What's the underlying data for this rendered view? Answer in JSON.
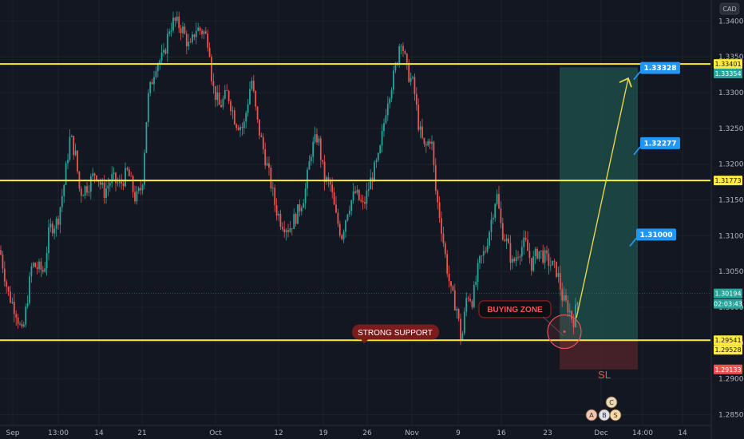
{
  "currency_label": "CAD",
  "colors": {
    "background": "#131722",
    "up": "#26a69a",
    "down": "#ef5350",
    "level": "#ffeb3b",
    "target_zone": "#1d4f4a",
    "stop_zone": "#4a2229",
    "callout": "#2196f3",
    "annotation": "#7a1c1c"
  },
  "chart_data": {
    "type": "candlestick",
    "y_axis": {
      "min": 1.2835,
      "max": 1.3425,
      "ticks": [
        "1.34000",
        "1.33500",
        "1.33000",
        "1.32500",
        "1.32000",
        "1.31500",
        "1.31000",
        "1.30500",
        "1.30000",
        "1.29500",
        "1.29000",
        "1.28500"
      ]
    },
    "x_axis": {
      "ticks": [
        "Sep",
        "13:00",
        "14",
        "21",
        "Oct",
        "12",
        "19",
        "26",
        "Nov",
        "9",
        "16",
        "23",
        "Dec",
        "14:00",
        "14"
      ]
    },
    "horizontal_levels": [
      1.33401,
      1.31773,
      1.29541
    ],
    "price_tags": [
      {
        "value": "1.33401",
        "price": 1.33401,
        "style": "level"
      },
      {
        "value": "1.33354",
        "price": 1.33354,
        "style": "up"
      },
      {
        "value": "1.31773",
        "price": 1.31773,
        "style": "level"
      },
      {
        "value": "1.30194",
        "price": 1.30194,
        "style": "up"
      },
      {
        "value": "02:03:43",
        "price": 1.3005,
        "style": "up"
      },
      {
        "value": "1.29541",
        "price": 1.29541,
        "style": "level"
      },
      {
        "value": "1.29528",
        "price": 1.29528,
        "style": "level"
      },
      {
        "value": "1.29133",
        "price": 1.29133,
        "style": "down"
      }
    ],
    "targets": [
      {
        "label": "1.33328",
        "price": 1.33328
      },
      {
        "label": "1.32277",
        "price": 1.32277
      },
      {
        "label": "1.31000",
        "price": 1.31
      }
    ],
    "position": {
      "entry": 1.29541,
      "take_profit": 1.33354,
      "stop_loss": 1.29133
    },
    "annotations": [
      {
        "text": "STRONG SUPPORT",
        "price": 1.2965
      },
      {
        "text": "BUYING ZONE",
        "price": 1.2998
      },
      {
        "text": "SL",
        "price": 1.2905
      }
    ],
    "price_path": [
      [
        0,
        1.308
      ],
      [
        10,
        1.302
      ],
      [
        20,
        1.2995
      ],
      [
        28,
        1.296
      ],
      [
        40,
        1.306
      ],
      [
        55,
        1.305
      ],
      [
        62,
        1.311
      ],
      [
        72,
        1.312
      ],
      [
        80,
        1.317
      ],
      [
        88,
        1.324
      ],
      [
        95,
        1.321
      ],
      [
        100,
        1.316
      ],
      [
        110,
        1.317
      ],
      [
        120,
        1.319
      ],
      [
        130,
        1.316
      ],
      [
        140,
        1.318
      ],
      [
        150,
        1.317
      ],
      [
        160,
        1.319
      ],
      [
        170,
        1.315
      ],
      [
        178,
        1.317
      ],
      [
        185,
        1.329
      ],
      [
        195,
        1.334
      ],
      [
        205,
        1.335
      ],
      [
        212,
        1.339
      ],
      [
        218,
        1.34
      ],
      [
        228,
        1.339
      ],
      [
        238,
        1.336
      ],
      [
        245,
        1.339
      ],
      [
        255,
        1.3385
      ],
      [
        262,
        1.337
      ],
      [
        266,
        1.331
      ],
      [
        275,
        1.328
      ],
      [
        285,
        1.33
      ],
      [
        295,
        1.326
      ],
      [
        305,
        1.325
      ],
      [
        315,
        1.332
      ],
      [
        322,
        1.326
      ],
      [
        330,
        1.322
      ],
      [
        338,
        1.318
      ],
      [
        345,
        1.314
      ],
      [
        352,
        1.312
      ],
      [
        362,
        1.311
      ],
      [
        372,
        1.313
      ],
      [
        382,
        1.316
      ],
      [
        390,
        1.322
      ],
      [
        398,
        1.324
      ],
      [
        406,
        1.318
      ],
      [
        414,
        1.317
      ],
      [
        420,
        1.313
      ],
      [
        428,
        1.31
      ],
      [
        436,
        1.314
      ],
      [
        445,
        1.316
      ],
      [
        455,
        1.314
      ],
      [
        465,
        1.318
      ],
      [
        475,
        1.321
      ],
      [
        485,
        1.329
      ],
      [
        495,
        1.333
      ],
      [
        502,
        1.338
      ],
      [
        510,
        1.333
      ],
      [
        518,
        1.331
      ],
      [
        525,
        1.325
      ],
      [
        532,
        1.322
      ],
      [
        540,
        1.324
      ],
      [
        546,
        1.316
      ],
      [
        552,
        1.312
      ],
      [
        558,
        1.307
      ],
      [
        565,
        1.302
      ],
      [
        572,
        1.3
      ],
      [
        578,
        1.295
      ],
      [
        585,
        1.302
      ],
      [
        592,
        1.301
      ],
      [
        600,
        1.306
      ],
      [
        608,
        1.308
      ],
      [
        615,
        1.312
      ],
      [
        622,
        1.316
      ],
      [
        628,
        1.311
      ],
      [
        635,
        1.309
      ],
      [
        642,
        1.306
      ],
      [
        650,
        1.308
      ],
      [
        658,
        1.309
      ],
      [
        666,
        1.306
      ],
      [
        674,
        1.308
      ],
      [
        682,
        1.307
      ],
      [
        690,
        1.306
      ],
      [
        698,
        1.305
      ],
      [
        705,
        1.301
      ],
      [
        712,
        1.3
      ],
      [
        718,
        1.298
      ],
      [
        724,
        1.301
      ]
    ]
  },
  "footer_marks": [
    "C",
    "A",
    "B",
    "S"
  ]
}
